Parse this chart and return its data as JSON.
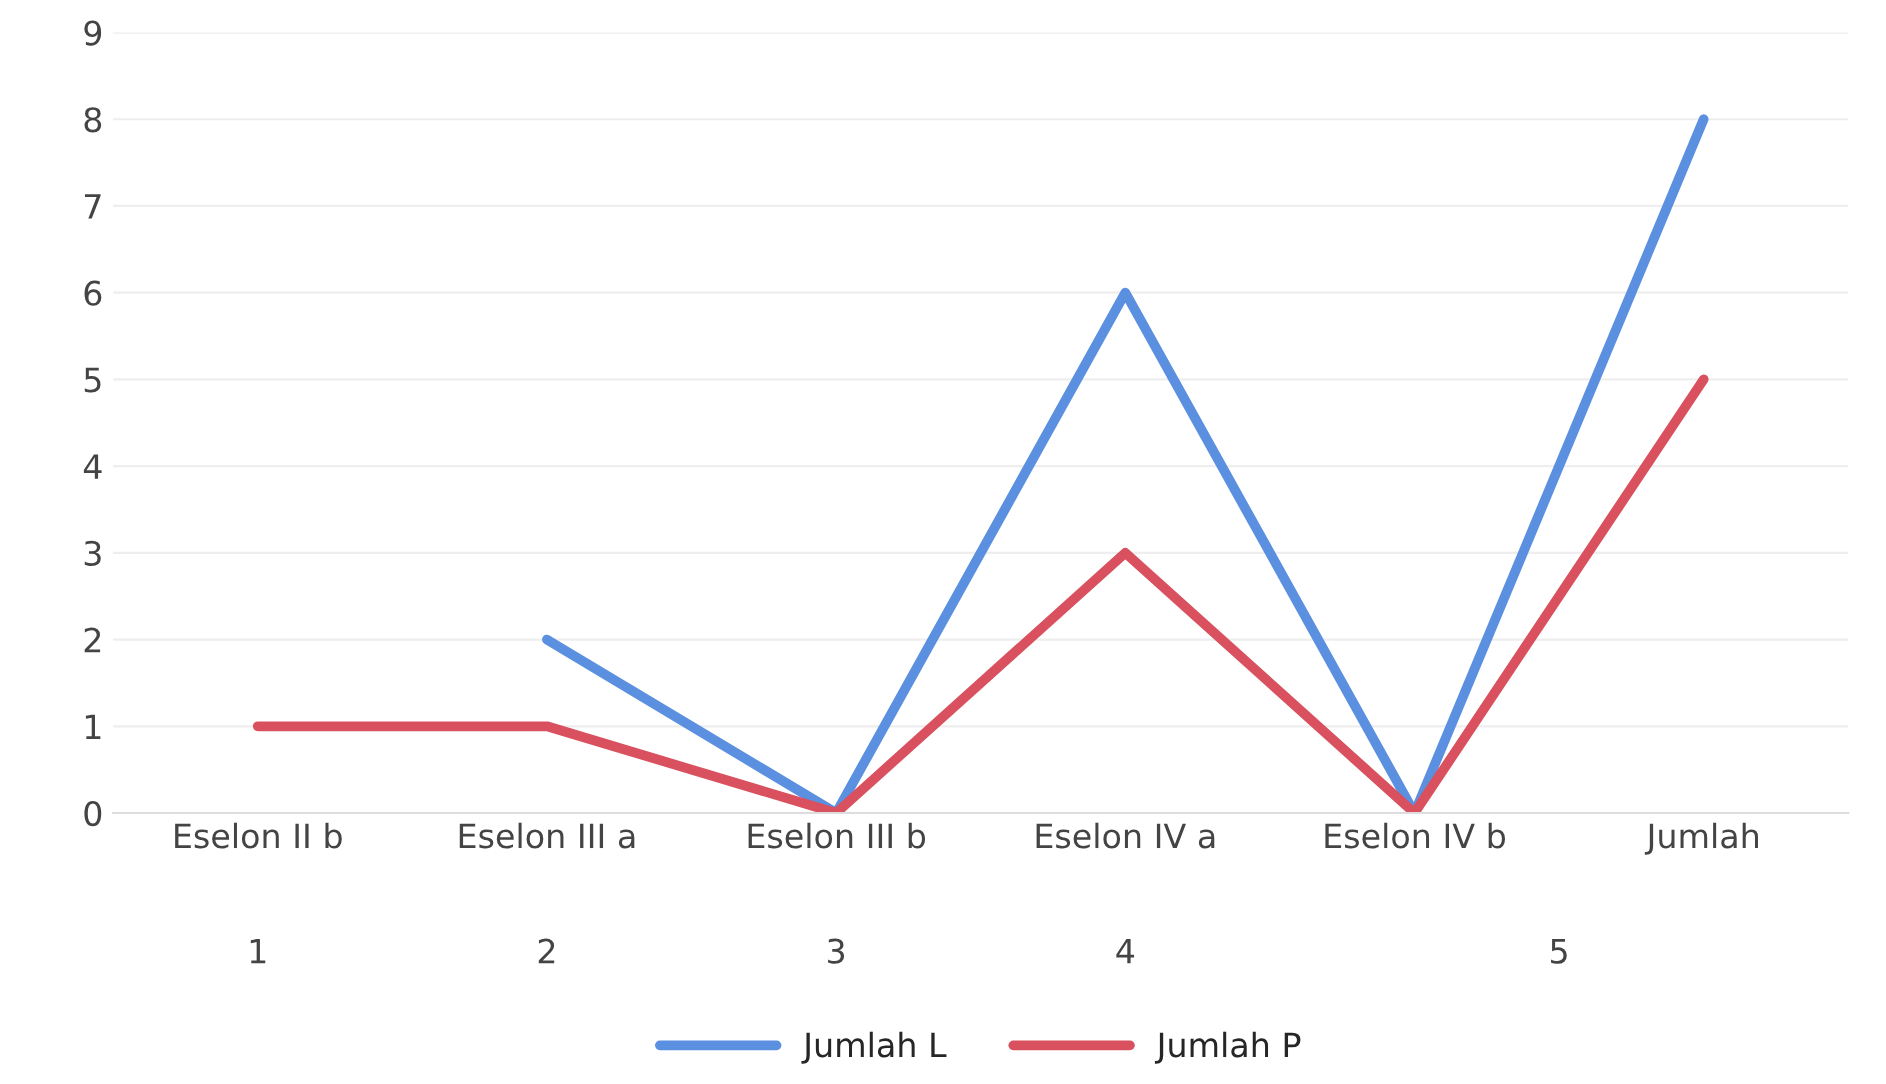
{
  "chart_data": {
    "type": "line",
    "categories": [
      "Eselon II b",
      "Eselon III a",
      "Eselon III b",
      "Eselon IV a",
      "Eselon IV b",
      "Jumlah"
    ],
    "series": [
      {
        "name": "Jumlah L",
        "color": "#5b8fe0",
        "values": [
          null,
          2,
          0,
          6,
          0,
          8
        ]
      },
      {
        "name": "Jumlah P",
        "color": "#d9505f",
        "values": [
          1,
          1,
          0,
          3,
          0,
          5
        ]
      }
    ],
    "ylim": [
      0,
      9
    ],
    "yticks": [
      0,
      1,
      2,
      3,
      4,
      5,
      6,
      7,
      8,
      9
    ],
    "grid": "y",
    "legend": "bottom",
    "marker": "none",
    "line_style": "solid",
    "annotations": [
      "1",
      "2",
      "3",
      "4",
      "5"
    ]
  }
}
